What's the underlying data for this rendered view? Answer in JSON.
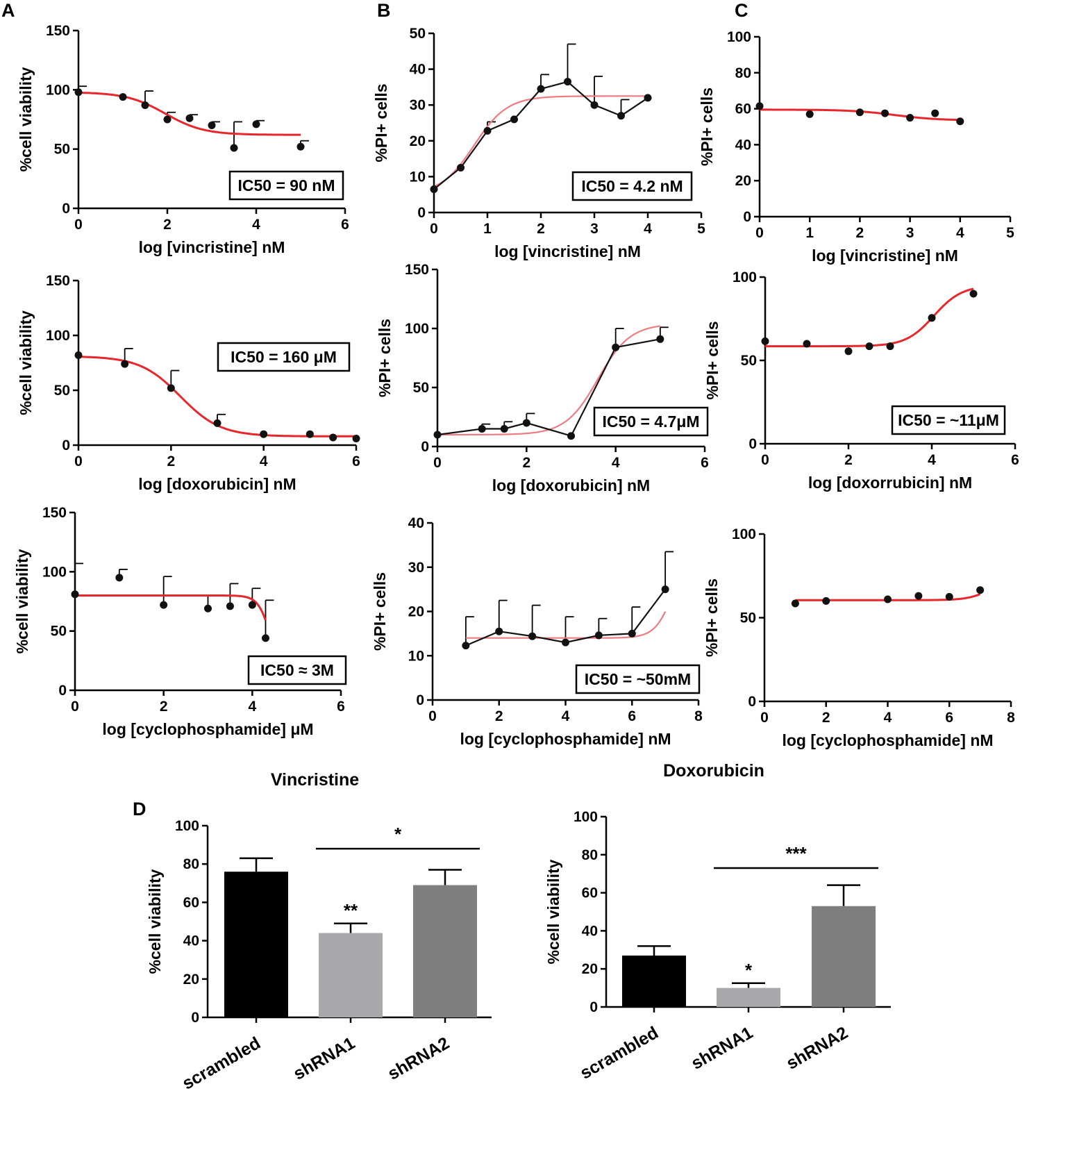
{
  "panel_labels": {
    "a": "A",
    "b": "B",
    "c": "C",
    "d": "D"
  },
  "colors": {
    "fit": "#e8262b",
    "fit_light": "#f07a80",
    "point": "#111111",
    "bar_black": "#000000",
    "bar_light": "#a9a9ad",
    "bar_grey": "#7f7f7f"
  },
  "chart_data": [
    {
      "id": "A1",
      "type": "scatter",
      "title": "",
      "xlabel": "log [vincristine] nM",
      "ylabel": "%cell viability",
      "xlim": [
        0,
        6
      ],
      "ylim": [
        0,
        150
      ],
      "xticks": [
        0,
        2,
        4,
        6
      ],
      "yticks": [
        0,
        50,
        100,
        150
      ],
      "points": [
        [
          0,
          98
        ],
        [
          1,
          94
        ],
        [
          1.5,
          87
        ],
        [
          2,
          75
        ],
        [
          2.5,
          76
        ],
        [
          3,
          70
        ],
        [
          3.5,
          51
        ],
        [
          4,
          71
        ],
        [
          5,
          52
        ]
      ],
      "errors": [
        5,
        0,
        12,
        6,
        3,
        3,
        22,
        3,
        5
      ],
      "fit": {
        "top": 98,
        "bottom": 62,
        "logEC50": 1.95,
        "hill": -1
      },
      "connect": false,
      "annotation": "IC50 = 90 nM"
    },
    {
      "id": "A2",
      "type": "scatter",
      "title": "",
      "xlabel": "log [doxorubicin] nM",
      "ylabel": "%cell viability",
      "xlim": [
        0,
        6
      ],
      "ylim": [
        0,
        150
      ],
      "xticks": [
        0,
        2,
        4,
        6
      ],
      "yticks": [
        0,
        50,
        100,
        150
      ],
      "points": [
        [
          0,
          82
        ],
        [
          1,
          74
        ],
        [
          2,
          52
        ],
        [
          3,
          20
        ],
        [
          4,
          10
        ],
        [
          5,
          10
        ],
        [
          5.5,
          7
        ],
        [
          6,
          6
        ]
      ],
      "errors": [
        0,
        14,
        16,
        8,
        0,
        0,
        0,
        0
      ],
      "fit": {
        "top": 81,
        "bottom": 8,
        "logEC50": 2.2,
        "hill": -1
      },
      "connect": false,
      "annotation": "IC50 = 160 μM"
    },
    {
      "id": "A3",
      "type": "scatter",
      "title": "",
      "xlabel": "log [cyclophosphamide] μM",
      "ylabel": "%cell viability",
      "xlim": [
        0,
        6
      ],
      "ylim": [
        0,
        150
      ],
      "xticks": [
        0,
        2,
        4,
        6
      ],
      "yticks": [
        0,
        50,
        100,
        150
      ],
      "points": [
        [
          0,
          81
        ],
        [
          1,
          95
        ],
        [
          2,
          72
        ],
        [
          3,
          69
        ],
        [
          3.5,
          71
        ],
        [
          4,
          72
        ],
        [
          4.3,
          44
        ]
      ],
      "errors": [
        26,
        7,
        24,
        11,
        19,
        14,
        32
      ],
      "fit": {
        "top": 80,
        "bottom": 0,
        "logEC50": 4.45,
        "hill": -3
      },
      "connect": false,
      "annotation": "IC50 ≈ 3M"
    },
    {
      "id": "B1",
      "type": "line",
      "title": "",
      "xlabel": "log [vincristine] nM",
      "ylabel": "%PI+ cells",
      "xlim": [
        0,
        5
      ],
      "ylim": [
        0,
        50
      ],
      "xticks": [
        0,
        1,
        2,
        3,
        4,
        5
      ],
      "yticks": [
        0,
        10,
        20,
        30,
        40,
        50
      ],
      "points": [
        [
          0,
          6.5
        ],
        [
          0.5,
          12.5
        ],
        [
          1,
          22.8
        ],
        [
          1.5,
          26
        ],
        [
          2,
          34.5
        ],
        [
          2.5,
          36.5
        ],
        [
          3,
          30
        ],
        [
          3.5,
          27
        ],
        [
          4,
          32
        ]
      ],
      "errors": [
        0,
        0,
        2.5,
        0,
        4,
        10.5,
        8,
        4.5,
        0
      ],
      "fit": {
        "top": 32.5,
        "bottom": 5,
        "logEC50": 0.75,
        "hill": 1.4
      },
      "connect": true,
      "annotation": "IC50 = 4.2 nM"
    },
    {
      "id": "B2",
      "type": "line",
      "title": "",
      "xlabel": "log [doxorubicin] nM",
      "ylabel": "%PI+ cells",
      "xlim": [
        0,
        6
      ],
      "ylim": [
        0,
        150
      ],
      "xticks": [
        0,
        2,
        4,
        6
      ],
      "yticks": [
        0,
        50,
        100,
        150
      ],
      "points": [
        [
          0,
          10
        ],
        [
          1,
          15
        ],
        [
          1.5,
          15
        ],
        [
          2,
          20
        ],
        [
          3,
          9
        ],
        [
          4,
          84
        ],
        [
          5,
          91
        ]
      ],
      "errors": [
        0,
        4,
        6,
        8,
        0,
        16,
        10
      ],
      "fit": {
        "top": 104,
        "bottom": 10,
        "logEC50": 3.6,
        "hill": 1.2
      },
      "connect": true,
      "annotation": "IC50 = 4.7μM"
    },
    {
      "id": "B3",
      "type": "line",
      "title": "",
      "xlabel": "log [cyclophosphamide] nM",
      "ylabel": "%PI+ cells",
      "xlim": [
        0,
        8
      ],
      "ylim": [
        0,
        40
      ],
      "xticks": [
        0,
        2,
        4,
        6,
        8
      ],
      "yticks": [
        0,
        10,
        20,
        30,
        40
      ],
      "points": [
        [
          1,
          12.3
        ],
        [
          2,
          15.5
        ],
        [
          3,
          14.4
        ],
        [
          4,
          13
        ],
        [
          5,
          14.6
        ],
        [
          6,
          15
        ],
        [
          7,
          25
        ]
      ],
      "errors": [
        6.5,
        7,
        7,
        5.8,
        3.8,
        6,
        8.5
      ],
      "fit": {
        "top": 40,
        "bottom": 14,
        "logEC50": 7.35,
        "hill": 1.5
      },
      "connect": true,
      "annotation": "IC50 = ~50mM"
    },
    {
      "id": "C1",
      "type": "scatter",
      "title": "",
      "xlabel": "log [vincristine] nM",
      "ylabel": "%PI+ cells",
      "xlim": [
        0,
        5
      ],
      "ylim": [
        0,
        100
      ],
      "xticks": [
        0,
        1,
        2,
        3,
        4,
        5
      ],
      "yticks": [
        0,
        20,
        40,
        60,
        80,
        100
      ],
      "points": [
        [
          0,
          61.5
        ],
        [
          1,
          57
        ],
        [
          2,
          58
        ],
        [
          2.5,
          57.5
        ],
        [
          3,
          55
        ],
        [
          3.5,
          57.5
        ],
        [
          4,
          53
        ]
      ],
      "errors": [
        0,
        0,
        0,
        0,
        0,
        0,
        0
      ],
      "fit": {
        "top": 59.5,
        "bottom": 53.5,
        "logEC50": 2.7,
        "hill": -1
      },
      "connect": false,
      "annotation": ""
    },
    {
      "id": "C2",
      "type": "scatter",
      "title": "",
      "xlabel": "log [doxorrubicin] nM",
      "ylabel": "%PI+ cells",
      "xlim": [
        0,
        6
      ],
      "ylim": [
        0,
        100
      ],
      "xticks": [
        0,
        2,
        4,
        6
      ],
      "yticks": [
        0,
        50,
        100
      ],
      "points": [
        [
          0,
          61.5
        ],
        [
          1,
          60
        ],
        [
          2,
          55.5
        ],
        [
          2.5,
          58.5
        ],
        [
          3,
          58.5
        ],
        [
          4,
          75.5
        ],
        [
          5,
          90
        ]
      ],
      "errors": [
        0,
        0,
        0,
        0,
        0,
        0,
        0
      ],
      "fit": {
        "top": 95,
        "bottom": 58.5,
        "logEC50": 4.05,
        "hill": 1.3
      },
      "connect": false,
      "annotation": "IC50 = ~11μM"
    },
    {
      "id": "C3",
      "type": "scatter",
      "title": "",
      "xlabel": "log [cyclophosphamide] nM",
      "ylabel": "%PI+ cells",
      "xlim": [
        0,
        8
      ],
      "ylim": [
        0,
        100
      ],
      "xticks": [
        0,
        2,
        4,
        6,
        8
      ],
      "yticks": [
        0,
        50,
        100
      ],
      "points": [
        [
          1,
          58.5
        ],
        [
          2,
          60
        ],
        [
          4,
          61
        ],
        [
          5,
          63
        ],
        [
          6,
          62.5
        ],
        [
          7,
          66.5
        ]
      ],
      "errors": [
        0,
        0,
        0,
        0,
        0,
        0
      ],
      "fit": {
        "top": 75,
        "bottom": 60.5,
        "logEC50": 7.4,
        "hill": 1.2
      },
      "connect": false,
      "annotation": ""
    },
    {
      "id": "D1",
      "type": "bar",
      "title": "Vincristine",
      "xlabel": "",
      "ylabel": "%cell viability",
      "ylim": [
        0,
        100
      ],
      "yticks": [
        0,
        20,
        40,
        60,
        80,
        100
      ],
      "categories": [
        "scrambled",
        "shRNA1",
        "shRNA2"
      ],
      "values": [
        76,
        44,
        69
      ],
      "errors": [
        7,
        5,
        8
      ],
      "bar_colors": [
        "#000000",
        "#a9a9ad",
        "#7f7f7f"
      ],
      "bar_labels": [
        "",
        "**",
        ""
      ],
      "bracket": {
        "from": 1,
        "to": 2,
        "y": 88,
        "label": "*"
      }
    },
    {
      "id": "D2",
      "type": "bar",
      "title": "Doxorubicin",
      "xlabel": "",
      "ylabel": "%cell viability",
      "ylim": [
        0,
        100
      ],
      "yticks": [
        0,
        20,
        40,
        60,
        80,
        100
      ],
      "categories": [
        "scrambled",
        "shRNA1",
        "shRNA2"
      ],
      "values": [
        27,
        10,
        53
      ],
      "errors": [
        5,
        2.5,
        11
      ],
      "bar_colors": [
        "#000000",
        "#a9a9ad",
        "#7f7f7f"
      ],
      "bar_labels": [
        "",
        "*",
        ""
      ],
      "bracket": {
        "from": 1,
        "to": 2,
        "y": 73,
        "label": "***"
      }
    }
  ]
}
